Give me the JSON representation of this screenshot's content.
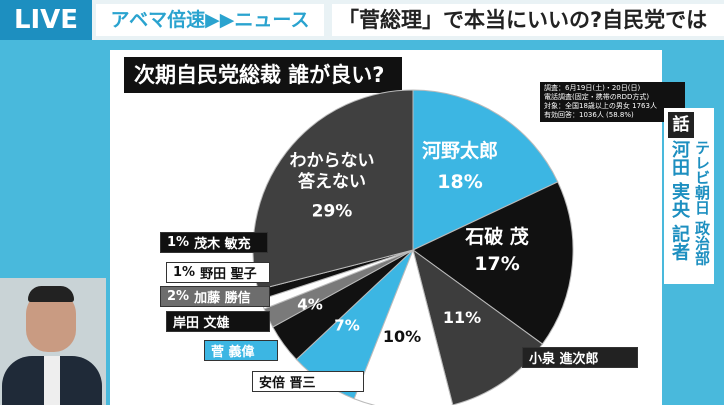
{
  "header": {
    "live": "LIVE",
    "program": "アベマ倍速▶▶ニュース",
    "headline": "「菅総理」で本当にいいの?自民党では"
  },
  "reporter": {
    "mark": "話",
    "affiliation": "テレビ朝日 政治部",
    "name": "河田 実央 記者"
  },
  "survey_note": [
    "調査：6月19日(土)・20日(日)",
    "電話調査(固定・携帯のRDD方式)",
    "対象：全国18歳以上の男女 1763人",
    "有効回答：1036人 (58.8%)"
  ],
  "chart_data": {
    "type": "pie",
    "title": "次期自民党総裁 誰が良い?",
    "categories": [
      "河野太郎",
      "石破 茂",
      "小泉 進次郎",
      "安倍 晋三",
      "菅 義偉",
      "岸田 文雄",
      "加藤 勝信",
      "野田 聖子",
      "茂木 敏充",
      "わからない\n答えない"
    ],
    "values": [
      18,
      17,
      11,
      10,
      7,
      4,
      2,
      1,
      1,
      29
    ],
    "value_labels": [
      "18%",
      "17%",
      "11%",
      "10%",
      "7%",
      "4%",
      "2%",
      "1%",
      "1%",
      "29%"
    ],
    "colors": [
      "#3cb6e3",
      "#111111",
      "#3d3d3d",
      "#ffffff",
      "#3cb6e3",
      "#111111",
      "#7a7a7a",
      "#ffffff",
      "#111111",
      "#404040"
    ]
  }
}
